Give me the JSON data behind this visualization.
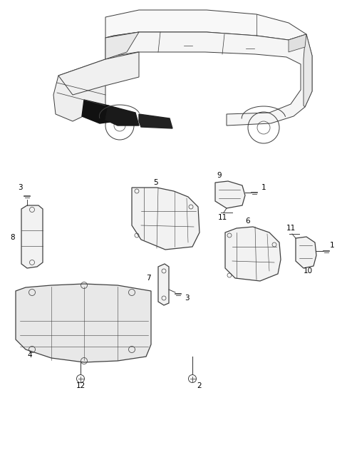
{
  "bg_color": "#ffffff",
  "fig_width": 4.8,
  "fig_height": 6.38,
  "dpi": 100,
  "line_color": "#404040",
  "label_color": "#000000",
  "label_fontsize": 7.5
}
